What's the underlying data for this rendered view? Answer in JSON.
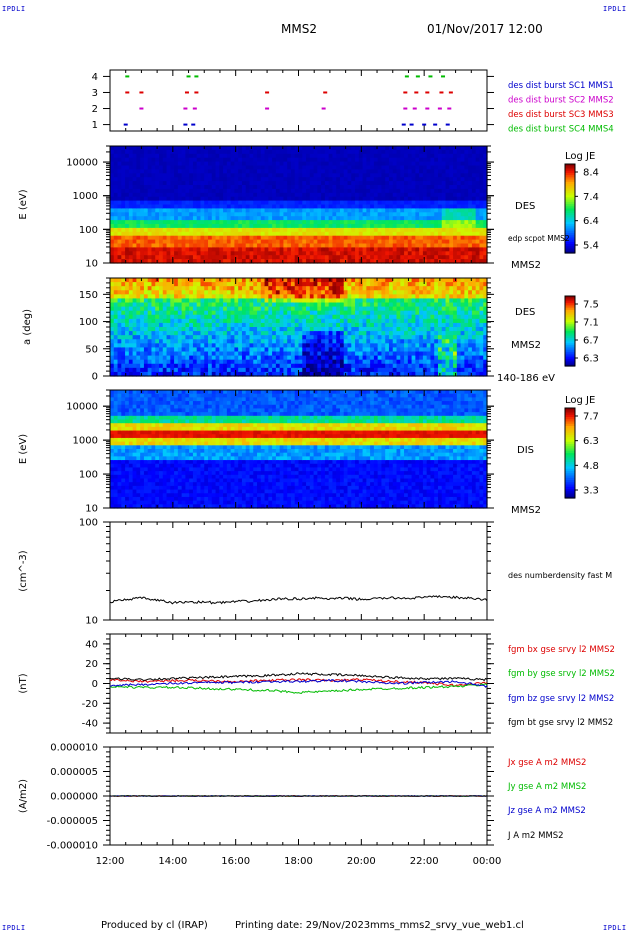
{
  "corners": {
    "text": "IPDLI"
  },
  "header": {
    "spacecraft": "MMS2",
    "datetime": "01/Nov/2017 12:00"
  },
  "footer": {
    "produced_by": "Produced by cl (IRAP)",
    "printing": "Printing date: 29/Nov/2023",
    "script": "mms_mms2_srvy_vue_web1.cl"
  },
  "chart_data": [
    {
      "type": "scatter",
      "id": "burst",
      "yticks": [
        "1",
        "2",
        "3",
        "4"
      ],
      "ylim": [
        0.6,
        4.4
      ],
      "legend": [
        {
          "name": "des dist burst SC1 MMS1",
          "color": "#0000cc"
        },
        {
          "name": "des dist burst SC2 MMS2",
          "color": "#cc00cc"
        },
        {
          "name": "des dist burst SC3 MMS3",
          "color": "#dd0000"
        },
        {
          "name": "des dist burst SC4 MMS4",
          "color": "#00bb00"
        }
      ],
      "series": [
        {
          "sc": 1,
          "color": "#0000cc",
          "x": [
            12.5,
            14.4,
            14.65,
            21.35,
            21.6,
            22.0,
            22.35,
            22.75
          ]
        },
        {
          "sc": 2,
          "color": "#cc00cc",
          "x": [
            13.0,
            14.4,
            14.7,
            17.0,
            18.8,
            21.4,
            21.7,
            22.1,
            22.5,
            22.8
          ]
        },
        {
          "sc": 3,
          "color": "#dd0000",
          "x": [
            12.55,
            13.0,
            14.45,
            14.75,
            17.0,
            18.85,
            21.4,
            21.75,
            22.1,
            22.55,
            22.85
          ]
        },
        {
          "sc": 4,
          "color": "#00bb00",
          "x": [
            12.55,
            14.5,
            14.75,
            21.45,
            21.8,
            22.2,
            22.6
          ]
        }
      ]
    },
    {
      "type": "heatmap",
      "id": "des_energy",
      "ylabel": "E (eV)",
      "ylog": true,
      "ylim": [
        10,
        30000
      ],
      "yticks": [
        "10",
        "100",
        "1000",
        "10000"
      ],
      "colorbar": {
        "title": "Log JE",
        "ticks": [
          "8.4",
          "7.4",
          "6.4",
          "5.4"
        ],
        "range": [
          5.4,
          8.4
        ]
      },
      "labels": [
        "DES",
        "edp scpot MMS2",
        "MMS2"
      ]
    },
    {
      "type": "heatmap",
      "id": "des_pitch",
      "ylabel": "a (deg)",
      "ylim": [
        0,
        180
      ],
      "yticks": [
        "0",
        "50",
        "100",
        "150"
      ],
      "colorbar": {
        "title": "",
        "ticks": [
          "7.5",
          "7.1",
          "6.7",
          "6.3"
        ],
        "range": [
          6.3,
          7.5
        ]
      },
      "labels": [
        "DES",
        "MMS2",
        "140-186 eV"
      ]
    },
    {
      "type": "heatmap",
      "id": "dis_energy",
      "ylabel": "E (eV)",
      "ylog": true,
      "ylim": [
        10,
        30000
      ],
      "yticks": [
        "10",
        "100",
        "1000",
        "10000"
      ],
      "colorbar": {
        "title": "Log JE",
        "ticks": [
          "7.7",
          "6.3",
          "4.8",
          "3.3"
        ],
        "range": [
          3.3,
          7.7
        ]
      },
      "labels": [
        "DIS",
        "MMS2"
      ]
    },
    {
      "type": "line",
      "id": "density",
      "ylabel": "(cm^-3)",
      "ylog": true,
      "ylim": [
        10,
        100
      ],
      "yticks": [
        "10",
        "100"
      ],
      "series": [
        {
          "name": "des numberdensity fast M",
          "color": "#000000",
          "x": [
            12.0,
            12.5,
            13.0,
            13.5,
            14.0,
            14.5,
            15.0,
            15.5,
            16.0,
            16.5,
            17.0,
            17.5,
            18.0,
            18.5,
            19.0,
            19.5,
            20.0,
            20.5,
            21.0,
            21.5,
            22.0,
            22.5,
            23.0,
            23.5,
            24.0
          ],
          "y": [
            15.2,
            16.2,
            16.8,
            15.9,
            15.0,
            15.3,
            15.2,
            15.0,
            15.4,
            15.6,
            16.0,
            16.5,
            16.4,
            16.8,
            16.4,
            16.7,
            16.2,
            16.6,
            16.8,
            16.7,
            17.0,
            17.4,
            17.0,
            16.6,
            16.0
          ]
        }
      ]
    },
    {
      "type": "line",
      "id": "fgm",
      "ylabel": "(nT)",
      "ylim": [
        -50,
        50
      ],
      "yticks": [
        "-40",
        "-20",
        "0",
        "20",
        "40"
      ],
      "series": [
        {
          "name": "fgm bx gse srvy l2 MMS2",
          "color": "#dd0000",
          "x": [
            12,
            13,
            14,
            15,
            16,
            17,
            18,
            19,
            20,
            21,
            22,
            23,
            24
          ],
          "y": [
            4,
            2,
            3,
            3,
            2,
            3,
            4,
            3,
            4,
            2,
            1,
            -2,
            1
          ]
        },
        {
          "name": "fgm by gse srvy l2 MMS2",
          "color": "#00bb00",
          "x": [
            12,
            13,
            14,
            15,
            16,
            17,
            18,
            19,
            20,
            21,
            22,
            23,
            24
          ],
          "y": [
            -3,
            -4,
            -4,
            -5,
            -6,
            -7,
            -9,
            -8,
            -6,
            -5,
            -4,
            -3,
            -1
          ]
        },
        {
          "name": "fgm bz gse srvy l2 MMS2",
          "color": "#0000cc",
          "x": [
            12,
            13,
            14,
            15,
            16,
            17,
            18,
            19,
            20,
            21,
            22,
            23,
            24
          ],
          "y": [
            -2,
            -1,
            0,
            1,
            1,
            2,
            2,
            3,
            2,
            0,
            1,
            2,
            -3
          ]
        },
        {
          "name": "fgm bt gse srvy l2 MMS2",
          "color": "#000000",
          "x": [
            12,
            13,
            14,
            15,
            16,
            17,
            18,
            19,
            20,
            21,
            22,
            23,
            24
          ],
          "y": [
            5,
            4,
            5,
            6,
            7,
            8,
            10,
            9,
            8,
            6,
            5,
            5,
            4
          ]
        }
      ]
    },
    {
      "type": "line",
      "id": "current",
      "ylabel": "(A/m2)",
      "ylim": [
        -1e-05,
        1e-05
      ],
      "yticks": [
        "-0.000010",
        "-0.000005",
        "0.000000",
        "0.000005",
        "0.000010"
      ],
      "xticks": [
        "12:00",
        "14:00",
        "16:00",
        "18:00",
        "20:00",
        "22:00",
        "00:00"
      ],
      "xlim": [
        12,
        24
      ],
      "series": [
        {
          "name": "Jx gse A m2 MMS2",
          "color": "#dd0000",
          "x": [
            12,
            24
          ],
          "y": [
            0,
            0
          ]
        },
        {
          "name": "Jy gse A m2 MMS2",
          "color": "#00bb00",
          "x": [
            12,
            24
          ],
          "y": [
            0,
            0
          ]
        },
        {
          "name": "Jz gse A m2 MMS2",
          "color": "#0000cc",
          "x": [
            12,
            24
          ],
          "y": [
            0,
            0
          ]
        },
        {
          "name": "J A m2 MMS2",
          "color": "#000000",
          "x": [
            12,
            24
          ],
          "y": [
            0,
            0
          ]
        }
      ]
    }
  ]
}
